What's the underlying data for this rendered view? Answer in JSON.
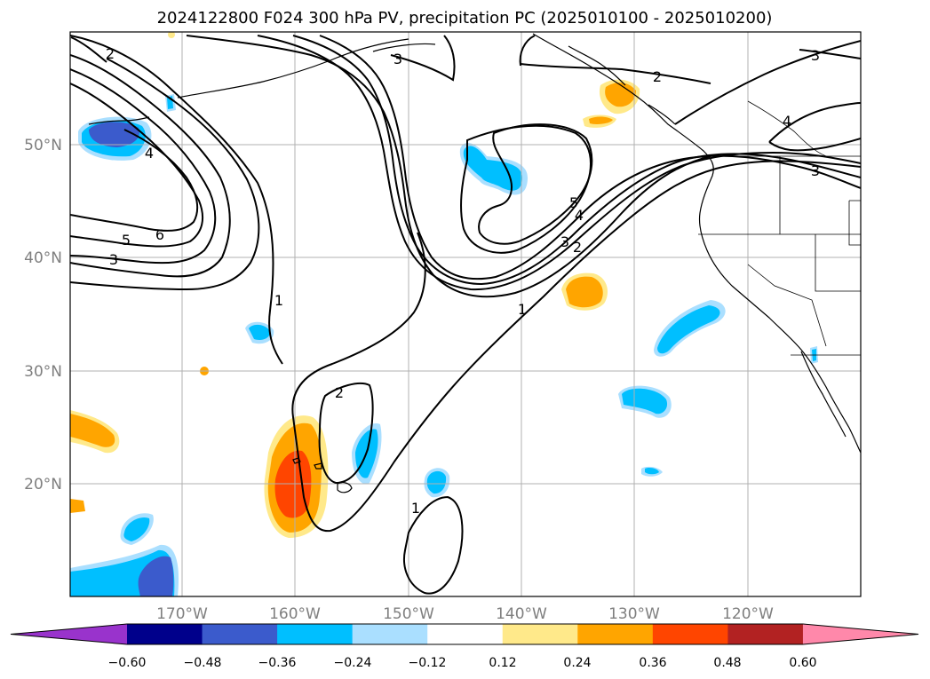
{
  "title": "2024122800 F024 300 hPa PV, precipitation PC (2025010100 - 2025010200)",
  "map": {
    "lat_labels": [
      "50°N",
      "40°N",
      "30°N",
      "20°N"
    ],
    "lon_labels": [
      "170°W",
      "160°W",
      "150°W",
      "140°W",
      "130°W",
      "120°W"
    ],
    "contour_labels": [
      "2",
      "3",
      "4",
      "6",
      "5",
      "3",
      "1",
      "5",
      "4",
      "3",
      "2",
      "1",
      "2",
      "1",
      "2",
      "4",
      "3",
      "3"
    ]
  },
  "colorbar": {
    "ticks": [
      "−0.60",
      "−0.48",
      "−0.36",
      "−0.24",
      "−0.12",
      "0.12",
      "0.24",
      "0.36",
      "0.48",
      "0.60"
    ],
    "colors": [
      "#9933cc",
      "#00008b",
      "#3b5bcc",
      "#00bfff",
      "#aadfff",
      "#ffffff",
      "#ffe98a",
      "#ffa500",
      "#ff4500",
      "#b22222",
      "#ff88aa"
    ]
  },
  "shading_colors": {
    "pos_light": "#ffe98a",
    "pos_mid": "#ffa500",
    "pos_high": "#ff4500",
    "neg_light": "#aadfff",
    "neg_mid": "#00bfff",
    "neg_high": "#3b5bcc"
  }
}
